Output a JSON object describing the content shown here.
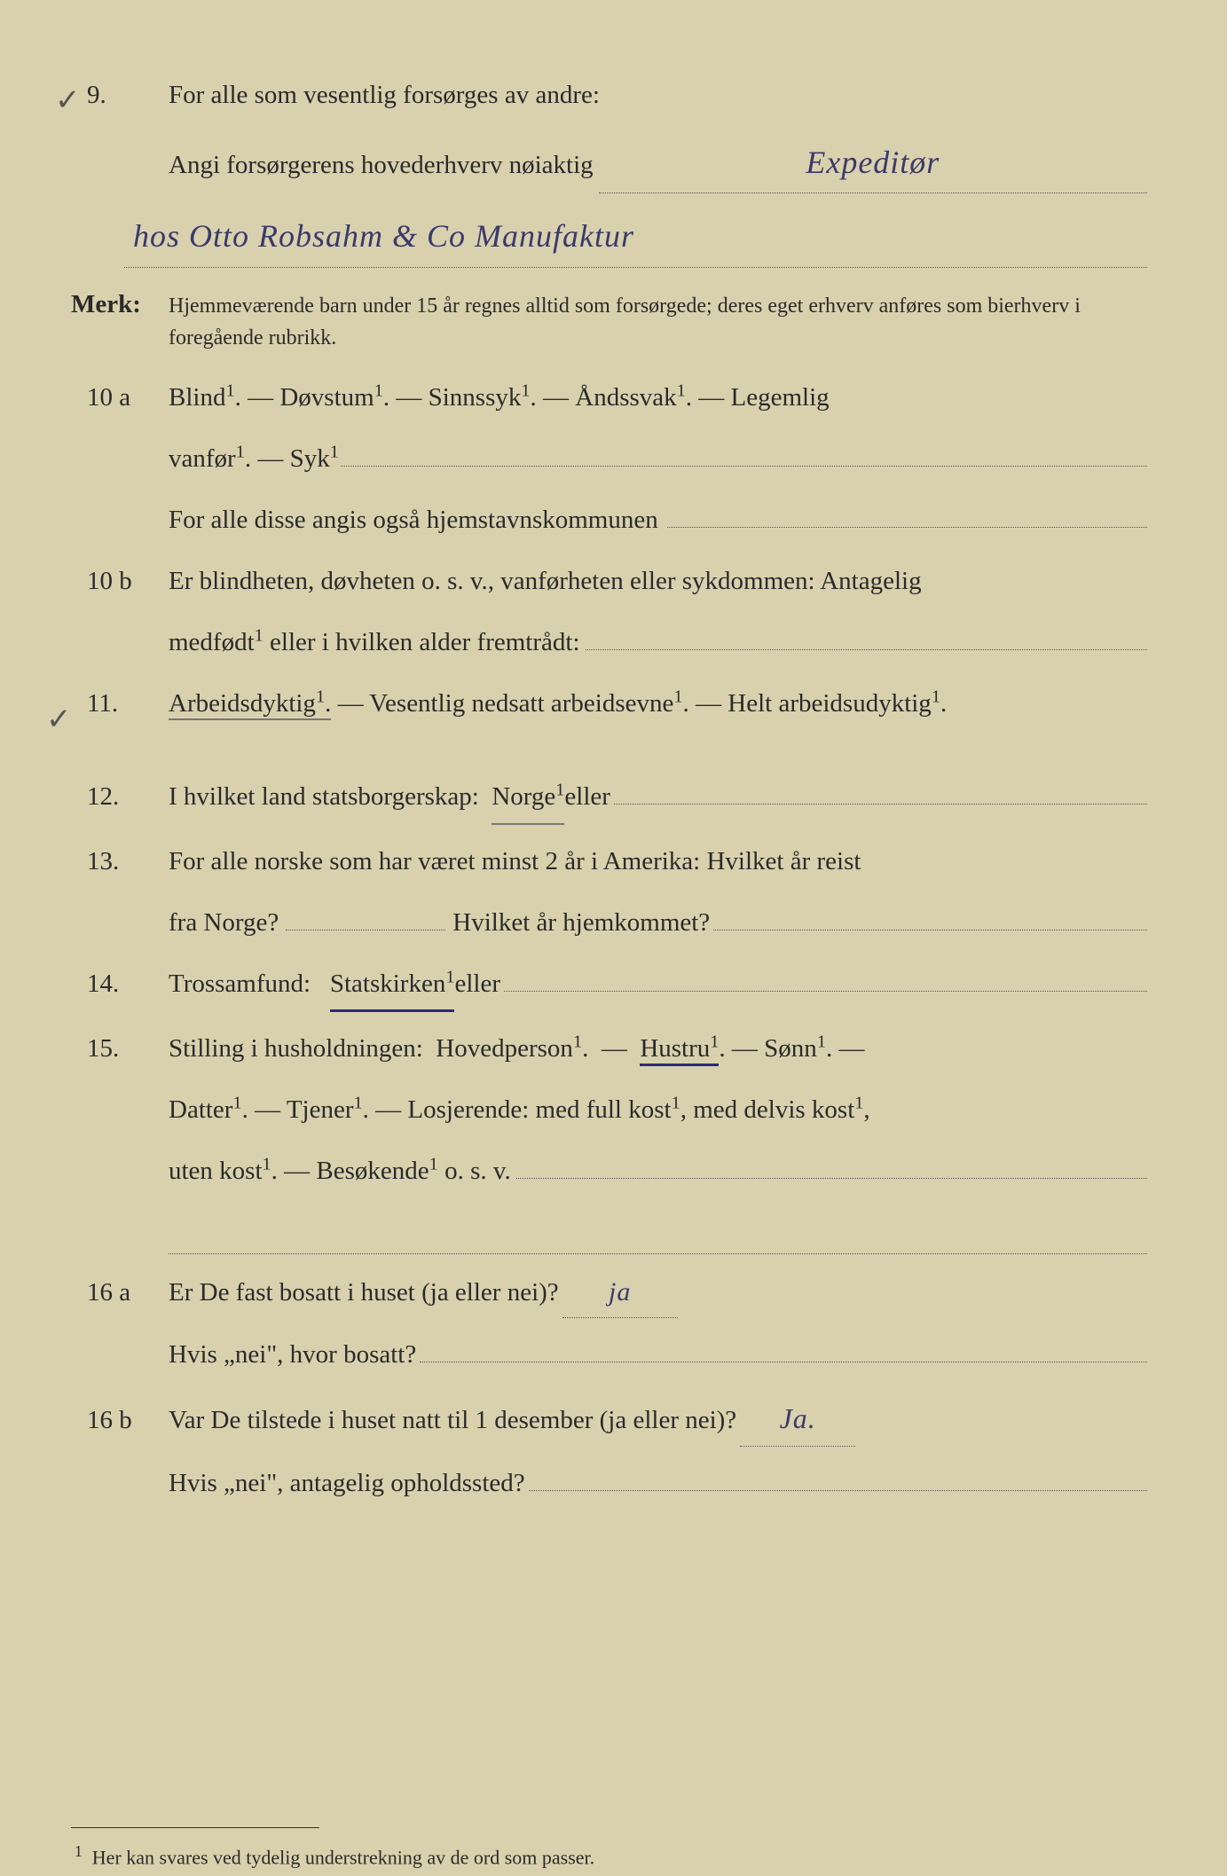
{
  "q9": {
    "num": "9.",
    "line1_prefix": "For alle som vesentlig forsørges av andre:",
    "line2_prefix": "Angi forsørgerens hovederhverv nøiaktig",
    "handwritten1": "Expeditør",
    "handwritten2": "hos Otto Robsahm & Co Manufaktur"
  },
  "merk": {
    "label": "Merk:",
    "text": "Hjemmeværende barn under 15 år regnes alltid som forsørgede; deres eget erhverv anføres som bierhverv i foregående rubrikk."
  },
  "q10a": {
    "num": "10 a",
    "line1": "Blind¹.  —  Døvstum¹.  —  Sinnssyk¹.  —  Åndssvak¹.  —  Legemlig",
    "line2_prefix": "vanfør¹.  —  Syk¹",
    "line3_prefix": "For alle disse angis også hjemstavnskommunen"
  },
  "q10b": {
    "num": "10 b",
    "line1": "Er blindheten, døvheten o. s. v., vanførheten eller sykdommen: Antagelig",
    "line2_prefix": "medfødt¹ eller i hvilken alder fremtrådt:"
  },
  "q11": {
    "num": "11.",
    "text_a": "Arbeidsdyktig¹.",
    "text_b": " — Vesentlig nedsatt arbeidsevne¹. — Helt arbeidsudyktig¹."
  },
  "q12": {
    "num": "12.",
    "prefix": "I hvilket land statsborgerskap:  ",
    "norge": "Norge¹",
    "mid": " eller"
  },
  "q13": {
    "num": "13.",
    "line1": "For alle norske som har været minst 2 år i Amerika:  Hvilket år reist",
    "line2a": "fra Norge?",
    "line2b": "Hvilket år hjemkommet?"
  },
  "q14": {
    "num": "14.",
    "prefix": "Trossamfund:   ",
    "stat": "Statskirken¹",
    "mid": " eller"
  },
  "q15": {
    "num": "15.",
    "line1a": "Stilling i husholdningen:  Hovedperson¹.  —  ",
    "hustru": "Hustru¹",
    "line1b": ".  —  Sønn¹.  —",
    "line2": "Datter¹.  —  Tjener¹.  —  Losjerende:  med full kost¹, med delvis kost¹,",
    "line3": "uten kost¹. — Besøkende¹ o. s. v."
  },
  "q16a": {
    "num": "16 a",
    "line1_prefix": "Er De fast bosatt i huset (ja eller nei)?",
    "ans": "ja",
    "line2_prefix": "Hvis „nei\", hvor bosatt?"
  },
  "q16b": {
    "num": "16 b",
    "line1_prefix": "Var De tilstede i huset natt til 1 desember (ja eller nei)?",
    "ans": "Ja.",
    "line2_prefix": "Hvis „nei\", antagelig opholdssted?"
  },
  "footnote": "Her kan svares ved tydelig understrekning av de ord som passer.",
  "colors": {
    "paper": "#d9d1ae",
    "ink": "#2a2a2a",
    "pen_blue": "#2a2a7a",
    "pencil": "#555"
  }
}
